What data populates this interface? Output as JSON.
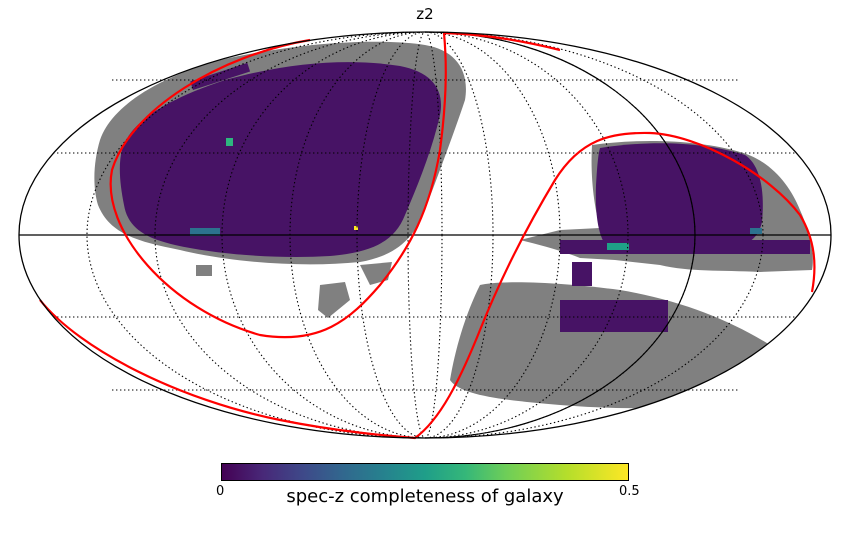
{
  "title": "z2",
  "colorbar": {
    "label": "spec-z completeness of galaxy",
    "min_label": "0",
    "max_label": "0.5",
    "colormap": "viridis",
    "colors": {
      "low": "#440154",
      "high": "#fde725"
    }
  },
  "map": {
    "projection": "mollweide",
    "masked_color": "#808080",
    "survey_fill_color": "#471365",
    "galactic_plane_color": "#ff0000",
    "graticule_style": "dotted",
    "outline_color": "#000000"
  }
}
